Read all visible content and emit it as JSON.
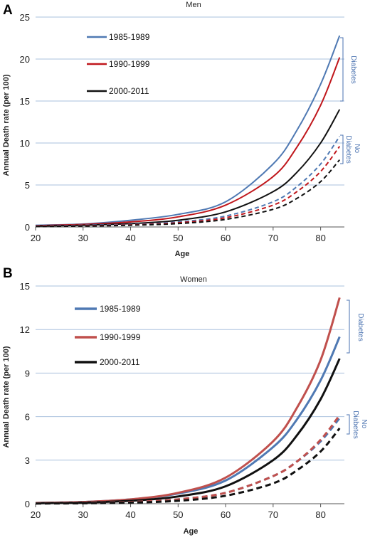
{
  "chart_data": [
    {
      "type": "line",
      "panel_label": "A",
      "title": "Men",
      "xlabel": "Age",
      "ylabel": "Annual Death rate (per 100)",
      "xlim": [
        20,
        85
      ],
      "ylim": [
        0,
        25
      ],
      "x_ticks": [
        20,
        30,
        40,
        50,
        60,
        70,
        80
      ],
      "y_ticks": [
        0,
        5,
        10,
        15,
        20,
        25
      ],
      "grid": "horizontal",
      "legend_position": "top-left",
      "legend": [
        "1985-1989",
        "1990-1999",
        "2000-2011"
      ],
      "annotations": [
        {
          "text": "Diabetes",
          "group": "diabetes"
        },
        {
          "text": "No Diabetes",
          "group": "no-diabetes"
        }
      ],
      "series": [
        {
          "name": "1985-1989",
          "group": "diabetes",
          "style": "solid",
          "color": "#4f79b3",
          "x": [
            20,
            30,
            40,
            50,
            60,
            70,
            75,
            80,
            84
          ],
          "y": [
            0.2,
            0.35,
            0.8,
            1.5,
            3.0,
            7.5,
            11.5,
            17.0,
            22.8
          ]
        },
        {
          "name": "1990-1999",
          "group": "diabetes",
          "style": "solid",
          "color": "#c0171c",
          "x": [
            20,
            30,
            40,
            50,
            60,
            70,
            75,
            80,
            84
          ],
          "y": [
            0.15,
            0.3,
            0.6,
            1.2,
            2.6,
            6.0,
            9.5,
            14.5,
            20.2
          ]
        },
        {
          "name": "2000-2011",
          "group": "diabetes",
          "style": "solid",
          "color": "#111111",
          "x": [
            20,
            30,
            40,
            50,
            60,
            70,
            75,
            80,
            84
          ],
          "y": [
            0.1,
            0.2,
            0.4,
            0.8,
            1.8,
            4.2,
            6.5,
            10.0,
            14.0
          ]
        },
        {
          "name": "1985-1989",
          "group": "no-diabetes",
          "style": "dashed",
          "color": "#4f79b3",
          "x": [
            20,
            30,
            40,
            50,
            60,
            70,
            75,
            80,
            84
          ],
          "y": [
            0.1,
            0.2,
            0.3,
            0.6,
            1.3,
            3.0,
            4.8,
            7.5,
            10.8
          ]
        },
        {
          "name": "1990-1999",
          "group": "no-diabetes",
          "style": "dashed",
          "color": "#c0171c",
          "x": [
            20,
            30,
            40,
            50,
            60,
            70,
            75,
            80,
            84
          ],
          "y": [
            0.08,
            0.15,
            0.25,
            0.5,
            1.1,
            2.6,
            4.2,
            6.6,
            9.6
          ]
        },
        {
          "name": "2000-2011",
          "group": "no-diabetes",
          "style": "dashed",
          "color": "#111111",
          "x": [
            20,
            30,
            40,
            50,
            60,
            70,
            75,
            80,
            84
          ],
          "y": [
            0.05,
            0.1,
            0.2,
            0.4,
            0.9,
            2.1,
            3.4,
            5.4,
            8.0
          ]
        }
      ]
    },
    {
      "type": "line",
      "panel_label": "B",
      "title": "Women",
      "xlabel": "Age",
      "ylabel": "Annual Death rate (per 100)",
      "xlim": [
        20,
        85
      ],
      "ylim": [
        0,
        15
      ],
      "x_ticks": [
        20,
        30,
        40,
        50,
        60,
        70,
        80
      ],
      "y_ticks": [
        0,
        3,
        6,
        9,
        12,
        15
      ],
      "grid": "horizontal",
      "legend_position": "top-left",
      "legend": [
        "1985-1989",
        "1990-1999",
        "2000-2011"
      ],
      "annotations": [
        {
          "text": "Diabetes",
          "group": "diabetes"
        },
        {
          "text": "No Diabetes",
          "group": "no-diabetes"
        }
      ],
      "series": [
        {
          "name": "1985-1989",
          "group": "diabetes",
          "style": "solid",
          "color": "#4f79b3",
          "x": [
            20,
            30,
            40,
            50,
            60,
            70,
            75,
            80,
            84
          ],
          "y": [
            0.05,
            0.12,
            0.3,
            0.7,
            1.6,
            3.9,
            5.8,
            8.5,
            11.5
          ]
        },
        {
          "name": "1990-1999",
          "group": "diabetes",
          "style": "solid",
          "color": "#c0504d",
          "x": [
            20,
            30,
            40,
            50,
            60,
            70,
            75,
            80,
            84
          ],
          "y": [
            0.05,
            0.12,
            0.3,
            0.75,
            1.8,
            4.3,
            6.6,
            9.9,
            14.2
          ]
        },
        {
          "name": "2000-2011",
          "group": "diabetes",
          "style": "solid",
          "color": "#111111",
          "x": [
            20,
            30,
            40,
            50,
            60,
            70,
            75,
            80,
            84
          ],
          "y": [
            0.03,
            0.08,
            0.2,
            0.5,
            1.2,
            3.0,
            4.7,
            7.2,
            10.0
          ]
        },
        {
          "name": "1985-1989",
          "group": "no-diabetes",
          "style": "dashed",
          "color": "#4f79b3",
          "x": [
            20,
            30,
            40,
            50,
            60,
            70,
            75,
            80,
            84
          ],
          "y": [
            0.02,
            0.05,
            0.12,
            0.3,
            0.75,
            1.9,
            2.9,
            4.3,
            5.9
          ]
        },
        {
          "name": "1990-1999",
          "group": "no-diabetes",
          "style": "dashed",
          "color": "#c0504d",
          "x": [
            20,
            30,
            40,
            50,
            60,
            70,
            75,
            80,
            84
          ],
          "y": [
            0.02,
            0.05,
            0.12,
            0.3,
            0.75,
            1.9,
            2.9,
            4.4,
            6.1
          ]
        },
        {
          "name": "2000-2011",
          "group": "no-diabetes",
          "style": "dashed",
          "color": "#111111",
          "x": [
            20,
            30,
            40,
            50,
            60,
            70,
            75,
            80,
            84
          ],
          "y": [
            0.01,
            0.03,
            0.08,
            0.2,
            0.55,
            1.4,
            2.3,
            3.6,
            5.2
          ]
        }
      ]
    }
  ]
}
